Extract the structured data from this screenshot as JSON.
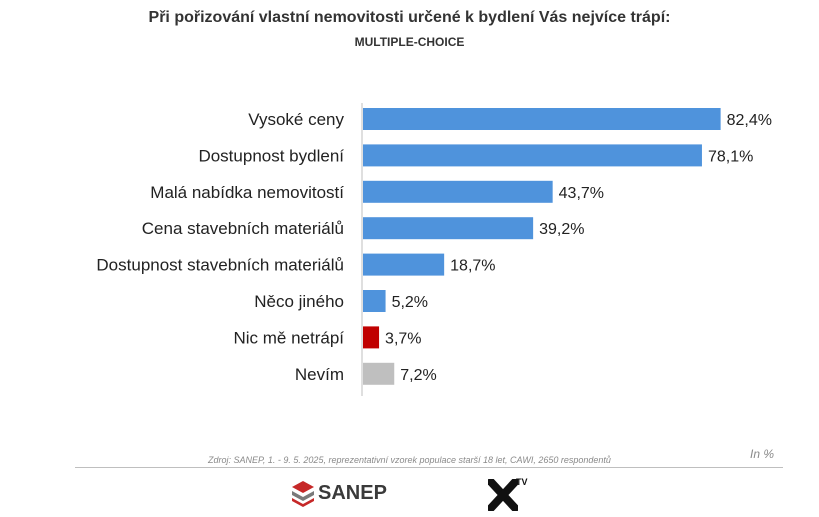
{
  "header": {
    "title": "Při pořizování vlastní nemovitosti určené k bydlení Vás nejvíce trápí:",
    "subtitle": "MULTIPLE-CHOICE"
  },
  "chart_data": {
    "type": "bar",
    "orientation": "horizontal",
    "categories": [
      "Vysoké ceny",
      "Dostupnost bydlení",
      "Malá nabídka nemovitostí",
      "Cena stavebních materiálů",
      "Dostupnost stavebních materiálů",
      "Něco jiného",
      "Nic mě netrápí",
      "Nevím"
    ],
    "values": [
      82.4,
      78.1,
      43.7,
      39.2,
      18.7,
      5.2,
      3.7,
      7.2
    ],
    "value_labels": [
      "82,4%",
      "78,1%",
      "43,7%",
      "39,2%",
      "18,7%",
      "5,2%",
      "3,7%",
      "7,2%"
    ],
    "bar_colors": [
      "#4f93dc",
      "#4f93dc",
      "#4f93dc",
      "#4f93dc",
      "#4f93dc",
      "#4f93dc",
      "#c00000",
      "#bfbfbf"
    ],
    "xlim": [
      0,
      100
    ],
    "grid": false,
    "legend": "none"
  },
  "footer": {
    "source": "Zdroj: SANEP, 1. - 9. 5. 2025, reprezentativní vzorek populace starší 18 let, CAWI, 2650 respondentů",
    "unit": "In %",
    "logo_sanep_text": "SANEP",
    "logo_tv_text": "TV"
  }
}
